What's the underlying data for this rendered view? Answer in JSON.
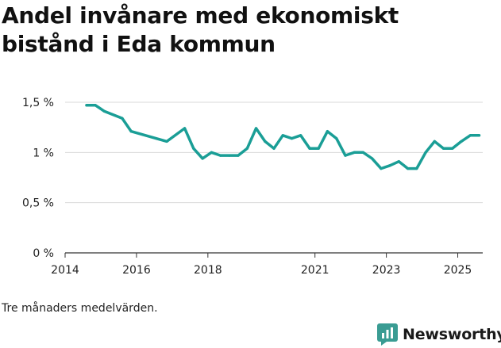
{
  "title": "Andel invånare med ekonomiskt bistånd i Eda kommun",
  "caption": "Tre månaders medelvärden.",
  "brand": {
    "name": "Newsworthy",
    "icon": "newsworthy-logo-icon",
    "color": "#3a9c93"
  },
  "colors": {
    "line": "#1a9e96",
    "grid": "#d9d9d9",
    "axis": "#333333"
  },
  "chart_data": {
    "type": "line",
    "title": "Andel invånare med ekonomiskt bistånd i Eda kommun",
    "xlabel": "",
    "ylabel": "",
    "xlim": [
      2014,
      2025.7
    ],
    "ylim": [
      0,
      1.5
    ],
    "x_ticks": [
      {
        "value": 2014,
        "label": "2014"
      },
      {
        "value": 2016,
        "label": "2016"
      },
      {
        "value": 2018,
        "label": "2018"
      },
      {
        "value": 2021,
        "label": "2021"
      },
      {
        "value": 2023,
        "label": "2023"
      },
      {
        "value": 2025,
        "label": "2025"
      }
    ],
    "y_ticks": [
      {
        "value": 0,
        "label": "0 %"
      },
      {
        "value": 0.5,
        "label": "0,5 %"
      },
      {
        "value": 1.0,
        "label": "1 %"
      },
      {
        "value": 1.5,
        "label": "1,5 %"
      }
    ],
    "grid": true,
    "series": [
      {
        "name": "Andel invånare med ekonomiskt bistånd",
        "x": [
          2014.6,
          2014.85,
          2015.1,
          2015.6,
          2015.85,
          2016.85,
          2017.35,
          2017.6,
          2017.85,
          2018.1,
          2018.35,
          2018.6,
          2018.85,
          2019.1,
          2019.35,
          2019.6,
          2019.85,
          2020.1,
          2020.35,
          2020.6,
          2020.85,
          2021.1,
          2021.35,
          2021.6,
          2021.85,
          2022.1,
          2022.35,
          2022.6,
          2022.85,
          2023.1,
          2023.35,
          2023.6,
          2023.85,
          2024.1,
          2024.35,
          2024.6,
          2024.85,
          2025.1,
          2025.35,
          2025.6
        ],
        "values": [
          1.47,
          1.47,
          1.41,
          1.34,
          1.21,
          1.11,
          1.24,
          1.04,
          0.94,
          1.0,
          0.97,
          0.97,
          0.97,
          1.04,
          1.24,
          1.11,
          1.04,
          1.17,
          1.14,
          1.17,
          1.04,
          1.04,
          1.21,
          1.14,
          0.97,
          1.0,
          1.0,
          0.94,
          0.84,
          0.87,
          0.91,
          0.84,
          0.84,
          1.0,
          1.11,
          1.04,
          1.04,
          1.11,
          1.17,
          1.17
        ]
      }
    ]
  }
}
